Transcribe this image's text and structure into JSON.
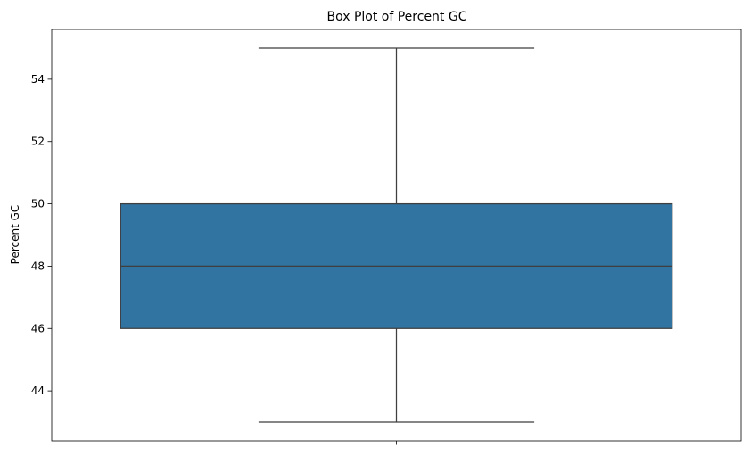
{
  "chart_data": {
    "type": "box",
    "title": "Box Plot of Percent GC",
    "xlabel": "",
    "ylabel": "Percent GC",
    "ylim": [
      42.4,
      55.6
    ],
    "yticks": [
      44,
      46,
      48,
      50,
      52,
      54
    ],
    "grid": false,
    "box": {
      "min": 43,
      "q1": 46,
      "median": 48,
      "q3": 50,
      "max": 55
    },
    "colors": {
      "box_fill": "#3274a1",
      "line": "#3f3f3f"
    }
  }
}
